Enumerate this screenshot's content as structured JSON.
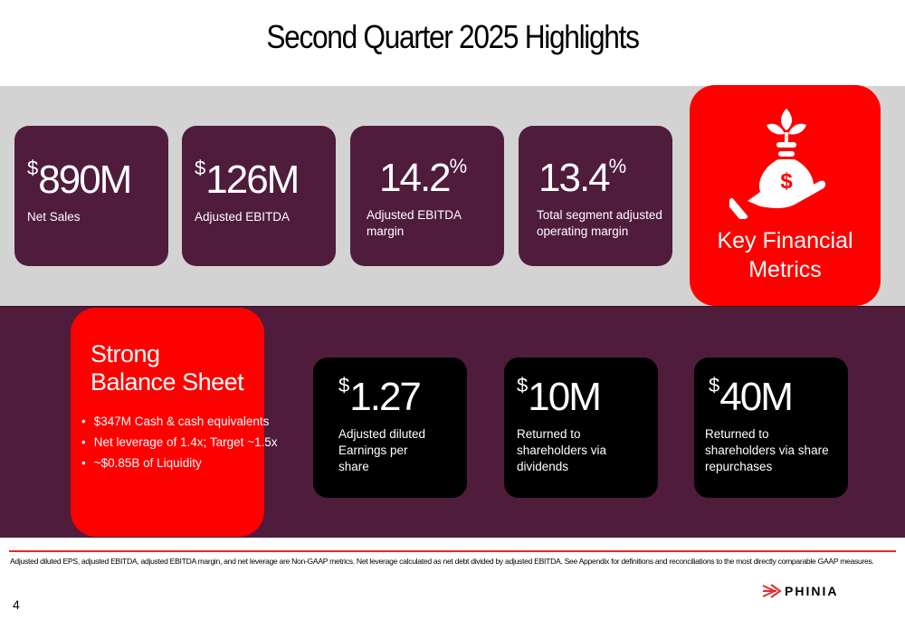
{
  "title": "Second Quarter 2025 Highlights",
  "colors": {
    "maroon": "#4f1c3c",
    "red": "#ff0000",
    "gray": "#d3d3d3",
    "black": "#000000"
  },
  "key_metrics": {
    "label": "Key Financial Metrics",
    "icon": "money-bag-in-hand-icon",
    "cards": [
      {
        "prefix": "$",
        "value": "890M",
        "suffix": "",
        "label": "Net Sales"
      },
      {
        "prefix": "$",
        "value": "126M",
        "suffix": "",
        "label": "Adjusted EBITDA"
      },
      {
        "prefix": "",
        "value": "14.2",
        "suffix": "%",
        "label": "Adjusted EBITDA margin"
      },
      {
        "prefix": "",
        "value": "13.4",
        "suffix": "%",
        "label": "Total segment adjusted operating margin"
      }
    ]
  },
  "balance_sheet": {
    "heading_line1": "Strong",
    "heading_line2": "Balance Sheet",
    "bullets": [
      "$347M Cash & cash equivalents",
      "Net leverage of 1.4x; Target ~1.5x",
      "~$0.85B of Liquidity"
    ]
  },
  "shareholder_cards": [
    {
      "prefix": "$",
      "value": "1.27",
      "label": "Adjusted diluted Earnings per share"
    },
    {
      "prefix": "$",
      "value": "10M",
      "label": "Returned to shareholders via dividends"
    },
    {
      "prefix": "$",
      "value": "40M",
      "label": "Returned to shareholders via share repurchases"
    }
  ],
  "footnote": "Adjusted diluted EPS, adjusted EBITDA, adjusted EBITDA margin, and net leverage are Non-GAAP metrics. Net leverage calculated as net debt divided by adjusted EBITDA. See Appendix for definitions and reconciliations to the most directly comparable GAAP measures.",
  "page_number": "4",
  "logo": "PHINIA"
}
